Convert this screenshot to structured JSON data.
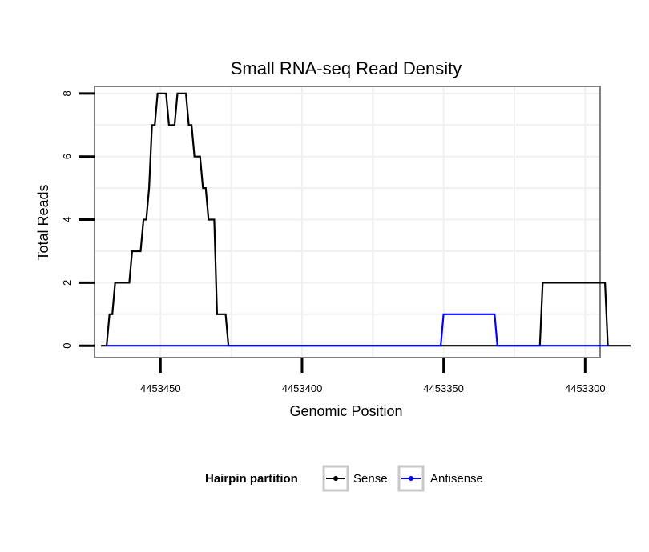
{
  "chart_data": {
    "type": "line",
    "title": "Small RNA-seq Read Density",
    "xlabel": "Genomic Position",
    "ylabel": "Total Reads",
    "xlim": [
      4453473,
      4453295
    ],
    "ylim": [
      -0.35,
      8.2
    ],
    "x_reversed": true,
    "grid": true,
    "x_ticks": [
      4453450,
      4453400,
      4453350,
      4453300
    ],
    "x_tick_labels": [
      "4453450",
      "4453400",
      "4453350",
      "4453300"
    ],
    "y_ticks": [
      0,
      2,
      4,
      6,
      8
    ],
    "y_tick_labels": [
      "0",
      "2",
      "4",
      "6",
      "8"
    ],
    "legend": {
      "title": "Hairpin partition",
      "placement": "bottom",
      "entries": [
        "Sense",
        "Antisense"
      ]
    },
    "series": [
      {
        "name": "Sense",
        "color": "#000000",
        "points": [
          [
            4453471,
            0
          ],
          [
            4453469,
            0
          ],
          [
            4453468,
            1
          ],
          [
            4453467,
            1
          ],
          [
            4453466,
            2
          ],
          [
            4453461,
            2
          ],
          [
            4453460,
            3
          ],
          [
            4453457,
            3
          ],
          [
            4453456,
            4
          ],
          [
            4453455,
            4
          ],
          [
            4453454,
            5
          ],
          [
            4453453,
            7
          ],
          [
            4453452,
            7
          ],
          [
            4453451,
            8
          ],
          [
            4453448,
            8
          ],
          [
            4453447,
            7
          ],
          [
            4453445,
            7
          ],
          [
            4453444,
            8
          ],
          [
            4453441,
            8
          ],
          [
            4453440,
            7
          ],
          [
            4453439,
            7
          ],
          [
            4453438,
            6
          ],
          [
            4453436,
            6
          ],
          [
            4453435,
            5
          ],
          [
            4453434,
            5
          ],
          [
            4453433,
            4
          ],
          [
            4453431,
            4
          ],
          [
            4453430,
            1
          ],
          [
            4453427,
            1
          ],
          [
            4453426,
            0
          ],
          [
            4453316,
            0
          ],
          [
            4453315,
            2
          ],
          [
            4453293,
            2
          ],
          [
            4453292,
            0
          ],
          [
            4453284,
            0
          ]
        ]
      },
      {
        "name": "Antisense",
        "color": "#0000ff",
        "points": [
          [
            4453469,
            0
          ],
          [
            4453351,
            0
          ],
          [
            4453350,
            1
          ],
          [
            4453332,
            1
          ],
          [
            4453331,
            0
          ],
          [
            4453292,
            0
          ]
        ]
      }
    ]
  }
}
